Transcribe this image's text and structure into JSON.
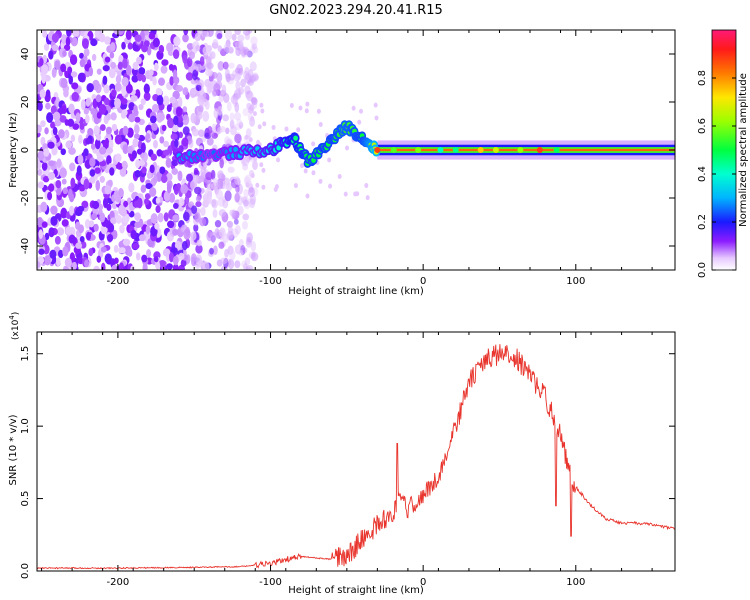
{
  "title": "GN02.2023.294.20.41.R15",
  "colors": {
    "snr_line": "#e8342c",
    "background": "#ffffff",
    "axis": "#000000"
  },
  "chart_data": [
    {
      "type": "heatmap",
      "xlabel": "Height of straight line (km)",
      "ylabel": "Frequency (Hz)",
      "xlim": [
        -253,
        165
      ],
      "ylim": [
        -50,
        50
      ],
      "x_ticks": [
        -200,
        -100,
        0,
        100
      ],
      "x_tick_labels": [
        "-200",
        "-100",
        "0",
        "100"
      ],
      "y_ticks": [
        -40,
        -20,
        0,
        20,
        40
      ],
      "y_tick_labels": [
        "-40",
        "-20",
        "0",
        "20",
        "40"
      ],
      "colorbar": {
        "label": "Normalized spectral amplitude",
        "range": [
          0,
          1
        ],
        "ticks": [
          0.0,
          0.2,
          0.4,
          0.6,
          0.8
        ],
        "tick_labels": [
          "0.0",
          "0.2",
          "0.4",
          "0.6",
          "0.8"
        ],
        "colormap": "rainbow: white/violet (0) → blue → cyan → green → yellow → red → magenta (1)"
      },
      "description_features": {
        "noise_region_km": [
          -253,
          -120
        ],
        "ridge_track": [
          {
            "x": -160,
            "freq": -3,
            "amp": 0.3
          },
          {
            "x": -140,
            "freq": -2,
            "amp": 0.25
          },
          {
            "x": -120,
            "freq": -1,
            "amp": 0.3
          },
          {
            "x": -100,
            "freq": 0,
            "amp": 0.35
          },
          {
            "x": -85,
            "freq": 5,
            "amp": 0.45
          },
          {
            "x": -75,
            "freq": -5,
            "amp": 0.5
          },
          {
            "x": -60,
            "freq": 4,
            "amp": 0.5
          },
          {
            "x": -50,
            "freq": 10,
            "amp": 0.55
          },
          {
            "x": -40,
            "freq": 5,
            "amp": 0.5
          },
          {
            "x": -30,
            "freq": 0,
            "amp": 0.7
          },
          {
            "x": 0,
            "freq": 0,
            "amp": 0.85
          },
          {
            "x": 50,
            "freq": 0,
            "amp": 0.9
          },
          {
            "x": 100,
            "freq": 0,
            "amp": 0.85
          },
          {
            "x": 165,
            "freq": 0,
            "amp": 0.8
          }
        ]
      }
    },
    {
      "type": "line",
      "xlabel": "Height of straight line (km)",
      "ylabel": "SNR (10 * v/v)",
      "y_multiplier_label": "(x10",
      "y_multiplier_exp": "4",
      "y_multiplier_close": ")",
      "xlim": [
        -253,
        165
      ],
      "ylim": [
        0,
        16500
      ],
      "x_ticks": [
        -200,
        -100,
        0,
        100
      ],
      "x_tick_labels": [
        "-200",
        "-100",
        "0",
        "100"
      ],
      "y_ticks": [
        0,
        5000,
        10000,
        15000
      ],
      "y_tick_labels": [
        "0.0",
        "0.5",
        "1.0",
        "1.5"
      ],
      "series": [
        {
          "x": [
            -253,
            -200,
            -150,
            -120,
            -100,
            -90,
            -80,
            -70,
            -60,
            -50,
            -40,
            -30,
            -20,
            -15,
            -10,
            0,
            10,
            20,
            30,
            40,
            50,
            60,
            70,
            80,
            90,
            95,
            100,
            110,
            120,
            130,
            140,
            150,
            160,
            165
          ],
          "values": [
            200,
            200,
            250,
            300,
            500,
            800,
            1000,
            900,
            800,
            1000,
            2200,
            3200,
            4000,
            4800,
            4300,
            5200,
            6500,
            9500,
            13000,
            14500,
            15000,
            14800,
            13500,
            12000,
            9500,
            7000,
            5800,
            4500,
            3600,
            3300,
            3300,
            3200,
            3000,
            2900
          ]
        }
      ]
    }
  ]
}
